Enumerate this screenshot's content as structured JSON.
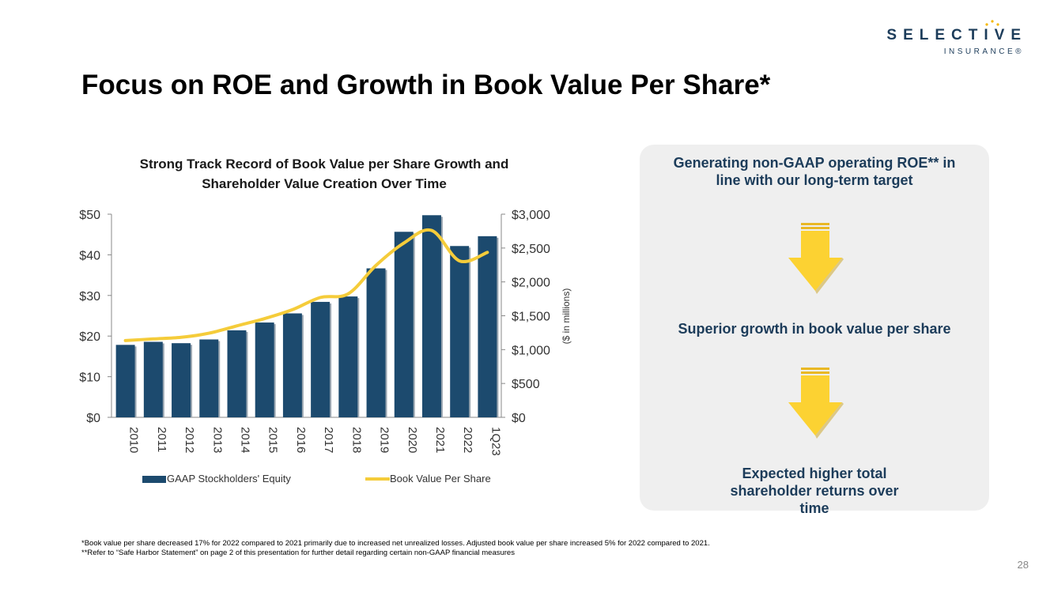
{
  "logo": {
    "word": "SELECTIVE",
    "sub": "INSURANCE®"
  },
  "title": "Focus on ROE and Growth in Book Value Per Share*",
  "chart_data": {
    "type": "bar",
    "title": "Strong Track Record of Book Value per Share Growth and Shareholder Value Creation Over Time",
    "title_lines": [
      "Strong Track Record of Book Value per Share Growth and",
      "Shareholder Value Creation Over Time"
    ],
    "categories": [
      "2010",
      "2011",
      "2012",
      "2013",
      "2014",
      "2015",
      "2016",
      "2017",
      "2018",
      "2019",
      "2020",
      "2021",
      "2022",
      "1Q23"
    ],
    "series": [
      {
        "name": "GAAP Stockholders' Equity",
        "type": "bar",
        "axis": "right",
        "color": "#1c4a6e",
        "values": [
          1070,
          1115,
          1095,
          1150,
          1285,
          1400,
          1535,
          1705,
          1785,
          2200,
          2740,
          2985,
          2530,
          2675
        ]
      },
      {
        "name": "Book Value Per Share",
        "type": "line",
        "axis": "left",
        "color": "#f5cc3a",
        "values": [
          18.9,
          19.3,
          19.7,
          20.7,
          22.5,
          24.3,
          26.5,
          29.5,
          30.4,
          37.4,
          42.9,
          46.0,
          38.5,
          40.6
        ]
      }
    ],
    "left_axis": {
      "ylim": [
        0,
        50
      ],
      "ticks": [
        "$0",
        "$10",
        "$20",
        "$30",
        "$40",
        "$50"
      ]
    },
    "right_axis": {
      "ylim": [
        0,
        3000
      ],
      "ticks": [
        "$0",
        "$500",
        "$1,000",
        "$1,500",
        "$2,000",
        "$2,500",
        "$3,000"
      ],
      "label": "($ in millions)"
    },
    "legend_position": "bottom",
    "grid": false
  },
  "panel": {
    "item1": "Generating non-GAAP operating ROE** in line with our long-term target",
    "item2": "Superior growth in book value per share",
    "item3": "Expected higher total shareholder returns over time",
    "arrow_color": "#fcd232"
  },
  "footnotes": {
    "line1": "*Book value per share decreased 17% for 2022 compared to 2021 primarily due to increased net unrealized losses. Adjusted book value per share increased 5% for 2022 compared to 2021.",
    "line2": "**Refer to “Safe Harbor Statement” on page 2 of this presentation for further detail regarding certain non-GAAP financial measures"
  },
  "page_number": "28"
}
